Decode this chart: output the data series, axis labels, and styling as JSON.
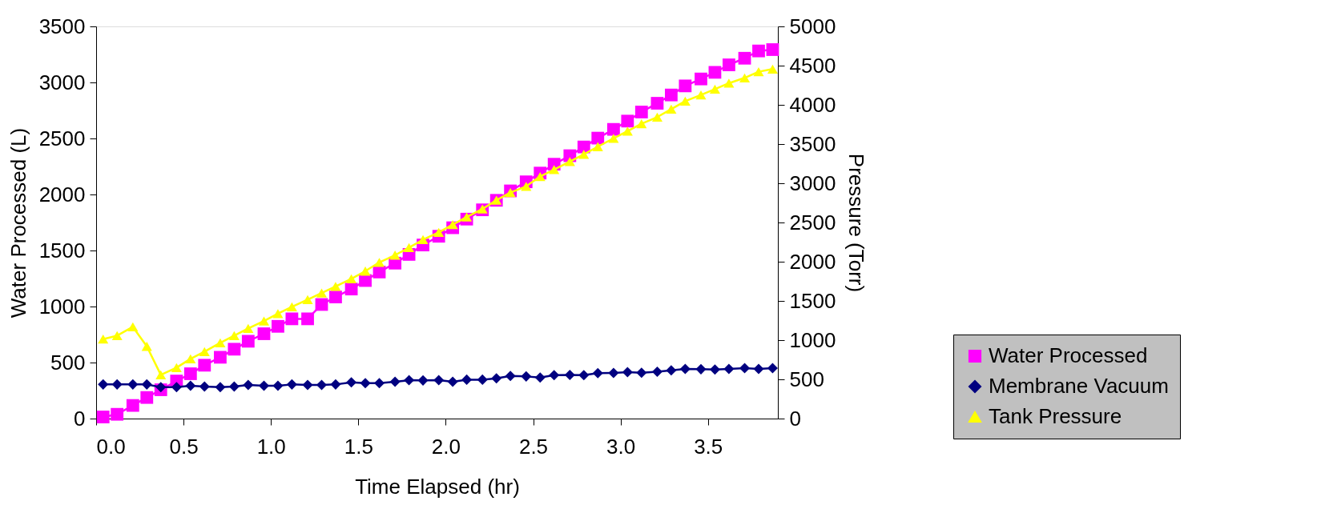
{
  "chart_data": {
    "type": "line",
    "xlabel": "Time Elapsed (hr)",
    "ylabel": "Water Processed (L)",
    "y2label": "Pressure (Torr)",
    "x": [
      0.04,
      0.12,
      0.21,
      0.29,
      0.37,
      0.46,
      0.54,
      0.62,
      0.71,
      0.79,
      0.87,
      0.96,
      1.04,
      1.12,
      1.21,
      1.29,
      1.37,
      1.46,
      1.54,
      1.62,
      1.71,
      1.79,
      1.87,
      1.96,
      2.04,
      2.12,
      2.21,
      2.29,
      2.37,
      2.46,
      2.54,
      2.62,
      2.71,
      2.79,
      2.87,
      2.96,
      3.04,
      3.12,
      3.21,
      3.29,
      3.37,
      3.46,
      3.54,
      3.62,
      3.71,
      3.79,
      3.87
    ],
    "series": [
      {
        "name": "Water Processed",
        "color": "#ff00ff",
        "marker": "square",
        "values": [
          14,
          38,
          117,
          188,
          257,
          335,
          400,
          476,
          547,
          619,
          690,
          757,
          823,
          890,
          890,
          1018,
          1085,
          1156,
          1232,
          1308,
          1387,
          1465,
          1549,
          1627,
          1703,
          1780,
          1863,
          1948,
          2032,
          2113,
          2191,
          2270,
          2346,
          2424,
          2503,
          2581,
          2655,
          2736,
          2814,
          2888,
          2969,
          3031,
          3090,
          3157,
          3216,
          3281,
          3293
        ]
      },
      {
        "name": "Membrane Vacuum",
        "color": "#000080",
        "marker": "diamond",
        "axis": "y2",
        "values": [
          435,
          435,
          435,
          435,
          401,
          401,
          418,
          408,
          401,
          408,
          428,
          418,
          418,
          435,
          428,
          428,
          435,
          462,
          452,
          452,
          469,
          489,
          486,
          489,
          469,
          496,
          496,
          513,
          544,
          537,
          523,
          554,
          557,
          554,
          578,
          581,
          591,
          585,
          598,
          615,
          632,
          629,
          625,
          632,
          642,
          632,
          642
        ]
      },
      {
        "name": "Tank Pressure",
        "color": "#ffff00",
        "marker": "triangle",
        "axis": "y2",
        "values": [
          1013,
          1057,
          1169,
          921,
          557,
          649,
          761,
          853,
          965,
          1057,
          1149,
          1244,
          1339,
          1424,
          1516,
          1601,
          1686,
          1781,
          1880,
          1992,
          2084,
          2179,
          2281,
          2373,
          2474,
          2570,
          2672,
          2784,
          2882,
          2961,
          3086,
          3175,
          3277,
          3368,
          3467,
          3572,
          3664,
          3759,
          3844,
          3946,
          4048,
          4126,
          4201,
          4276,
          4344,
          4422,
          4456
        ]
      }
    ],
    "xlim": [
      0,
      3.9
    ],
    "xticks": [
      {
        "value": 0,
        "label": "0.0"
      },
      0.5,
      {
        "value": 1,
        "label": "1.0"
      },
      1.5,
      {
        "value": 2,
        "label": "2.0"
      },
      2.5,
      {
        "value": 3,
        "label": "3.0"
      },
      3.5
    ],
    "ylim": [
      0,
      3500
    ],
    "yticks": [
      0,
      500,
      1000,
      1500,
      2000,
      2500,
      3000,
      3500
    ],
    "y2lim": [
      0,
      5000
    ],
    "y2ticks": [
      0,
      500,
      1000,
      1500,
      2000,
      2500,
      3000,
      3500,
      4000,
      4500,
      5000
    ],
    "grid": false,
    "legend": "right",
    "line_style": "solid"
  }
}
